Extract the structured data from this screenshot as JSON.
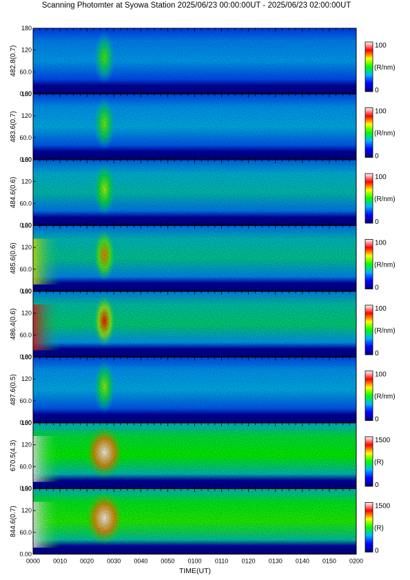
{
  "chart_data": {
    "type": "heatmap",
    "title": "Scanning Photomter at Syowa Station 2025/06/23 00:00:00UT - 2025/06/23 02:00:00UT",
    "xlabel": "TIME(UT)",
    "x_ticks": [
      "0000",
      "0010",
      "0020",
      "0030",
      "0040",
      "0050",
      "0100",
      "0110",
      "0120",
      "0130",
      "0140",
      "0150",
      "0200"
    ],
    "y_ticks": [
      "0.00",
      "60.0",
      "120",
      "180"
    ],
    "ylim": [
      0,
      180
    ],
    "panels": [
      {
        "label": "482.8(0.7)",
        "cbar_max": "100",
        "cbar_min": "0",
        "cbar_unit": "(R/nm)",
        "level": 0.32,
        "burst": 0.55,
        "edge": 0.05
      },
      {
        "label": "483.6(0.7)",
        "cbar_max": "100",
        "cbar_min": "0",
        "cbar_unit": "(R/nm)",
        "level": 0.34,
        "burst": 0.58,
        "edge": 0.05
      },
      {
        "label": "484.6(0.6)",
        "cbar_max": "100",
        "cbar_min": "0",
        "cbar_unit": "(R/nm)",
        "level": 0.38,
        "burst": 0.62,
        "edge": 0.1
      },
      {
        "label": "485.6(0.6)",
        "cbar_max": "100",
        "cbar_min": "0",
        "cbar_unit": "(R/nm)",
        "level": 0.4,
        "burst": 0.75,
        "edge": 0.3
      },
      {
        "label": "486.4(0.6)",
        "cbar_max": "100",
        "cbar_min": "0",
        "cbar_unit": "(R/nm)",
        "level": 0.42,
        "burst": 0.82,
        "edge": 0.5
      },
      {
        "label": "487.6(0.5)",
        "cbar_max": "100",
        "cbar_min": "0",
        "cbar_unit": "(R/nm)",
        "level": 0.34,
        "burst": 0.6,
        "edge": 0.05
      },
      {
        "label": "670.5(4.3)",
        "cbar_max": "1500",
        "cbar_min": "0",
        "cbar_unit": "(R)",
        "level": 0.5,
        "burst": 1.0,
        "edge": 0.7
      },
      {
        "label": "844.6(0.7)",
        "cbar_max": "1500",
        "cbar_min": "0",
        "cbar_unit": "(R)",
        "level": 0.52,
        "burst": 1.0,
        "edge": 0.9
      }
    ],
    "colormap": [
      "#000080",
      "#0000ff",
      "#00b4ff",
      "#00ff00",
      "#ffff00",
      "#ff0000",
      "#ffffff"
    ]
  }
}
